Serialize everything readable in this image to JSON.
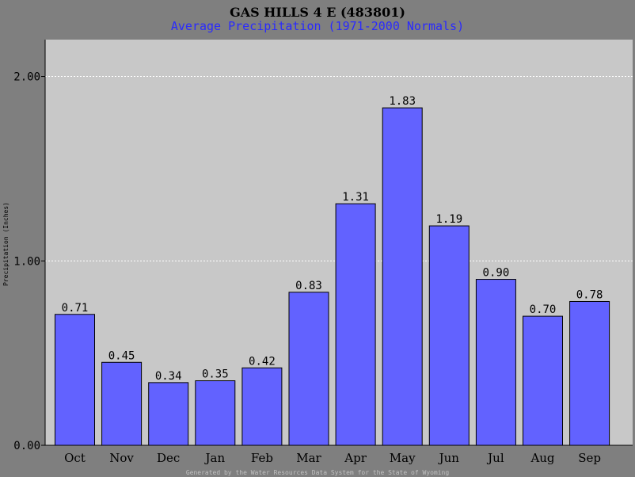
{
  "chart_data": {
    "type": "bar",
    "title": "GAS HILLS 4 E (483801)",
    "subtitle": "Average Precipitation (1971-2000 Normals)",
    "ylabel": "Precipitation (Inches)",
    "xlabel": "",
    "footer": "Generated by the Water Resources Data System for the State of Wyoming",
    "categories": [
      "Oct",
      "Nov",
      "Dec",
      "Jan",
      "Feb",
      "Mar",
      "Apr",
      "May",
      "Jun",
      "Jul",
      "Aug",
      "Sep"
    ],
    "values": [
      0.71,
      0.45,
      0.34,
      0.35,
      0.42,
      0.83,
      1.31,
      1.83,
      1.19,
      0.9,
      0.7,
      0.78
    ],
    "value_labels": [
      "0.71",
      "0.45",
      "0.34",
      "0.35",
      "0.42",
      "0.83",
      "1.31",
      "1.83",
      "1.19",
      "0.90",
      "0.70",
      "0.78"
    ],
    "ylim": [
      0,
      2.2
    ],
    "yticks": [
      0,
      1,
      2
    ],
    "ytick_labels": [
      "0.00",
      "1.00",
      "2.00"
    ],
    "grid": true,
    "colors": {
      "background": "#7f7f7f",
      "plot_area": "#c8c8c8",
      "bar": "#6262ff",
      "title": "#000000",
      "subtitle": "#2a2aff",
      "grid": "#ffffff",
      "footer": "#c0c0c0"
    }
  }
}
